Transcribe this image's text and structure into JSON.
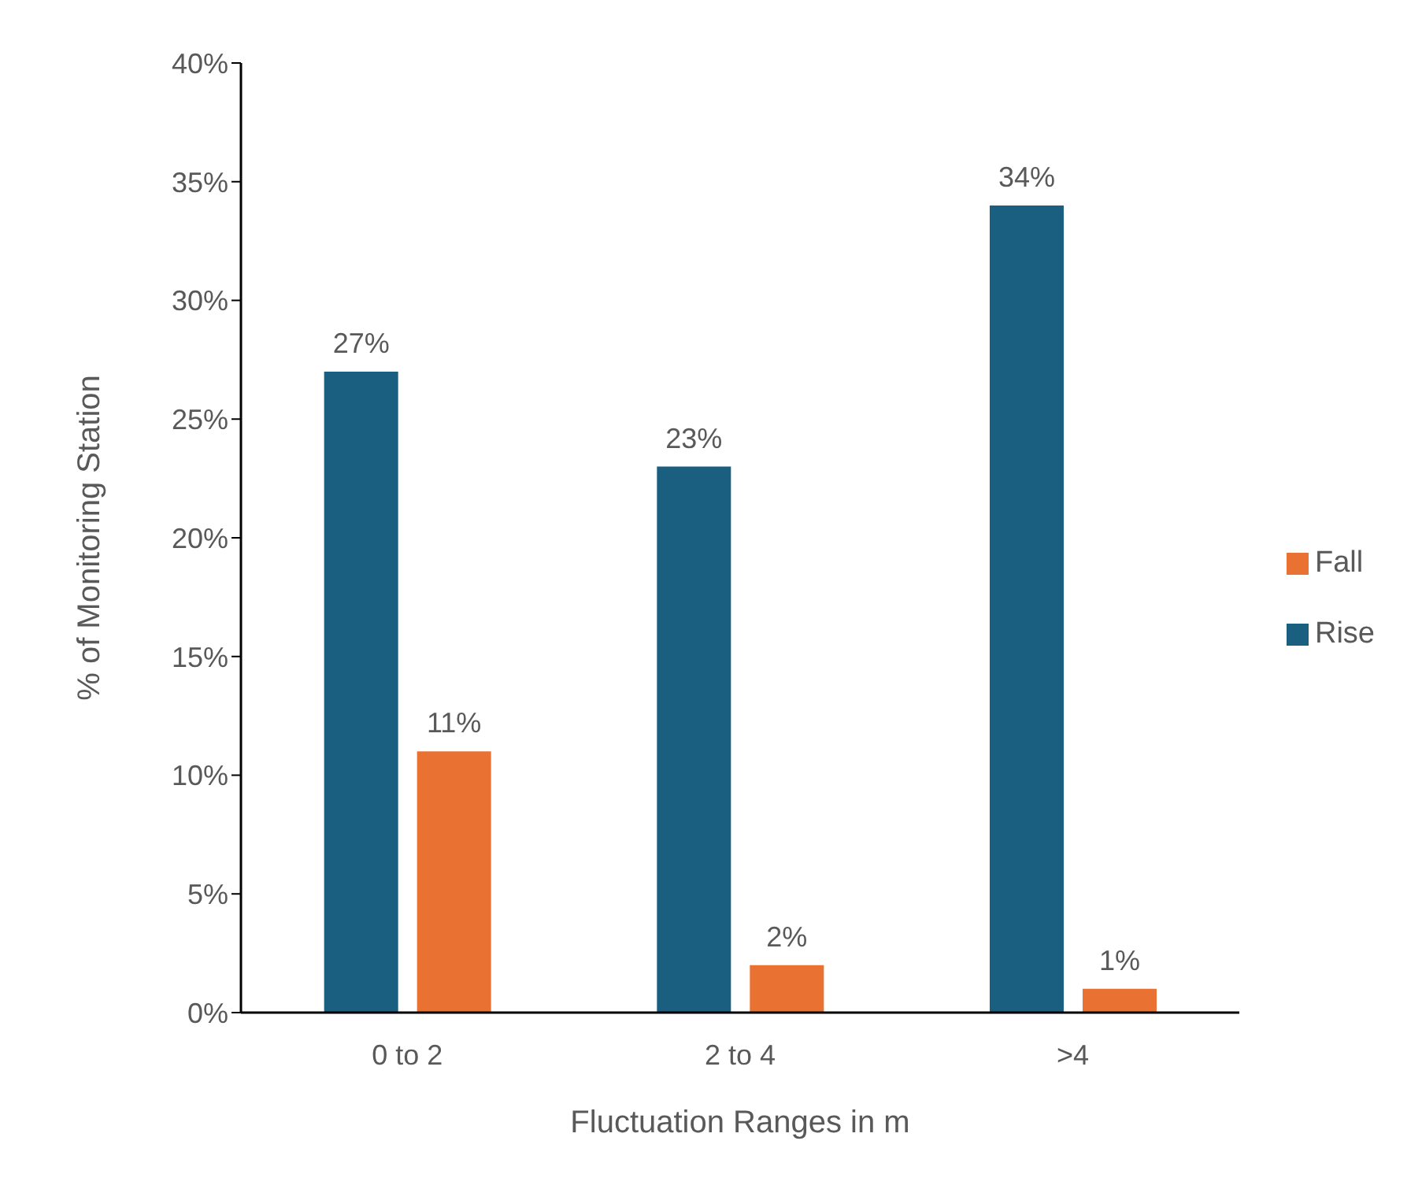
{
  "chart_data": {
    "type": "bar",
    "xlabel": "Fluctuation Ranges in m",
    "ylabel": "% of Monitoring Station",
    "categories": [
      "0 to 2",
      "2 to 4",
      ">4"
    ],
    "series": [
      {
        "name": "Rise",
        "color": "#1a5f80",
        "values": [
          27,
          23,
          34
        ],
        "value_labels": [
          "27%",
          "23%",
          "34%"
        ]
      },
      {
        "name": "Fall",
        "color": "#e97132",
        "values": [
          11,
          2,
          1
        ],
        "value_labels": [
          "11%",
          "2%",
          "1%"
        ]
      }
    ],
    "ylim": [
      0,
      40
    ],
    "yticks": [
      {
        "value": 0,
        "label": "0%"
      },
      {
        "value": 5,
        "label": "5%"
      },
      {
        "value": 10,
        "label": "10%"
      },
      {
        "value": 15,
        "label": "15%"
      },
      {
        "value": 20,
        "label": "20%"
      },
      {
        "value": 25,
        "label": "25%"
      },
      {
        "value": 30,
        "label": "30%"
      },
      {
        "value": 35,
        "label": "35%"
      },
      {
        "value": 40,
        "label": "40%"
      }
    ],
    "grid": false,
    "legend": "right"
  }
}
